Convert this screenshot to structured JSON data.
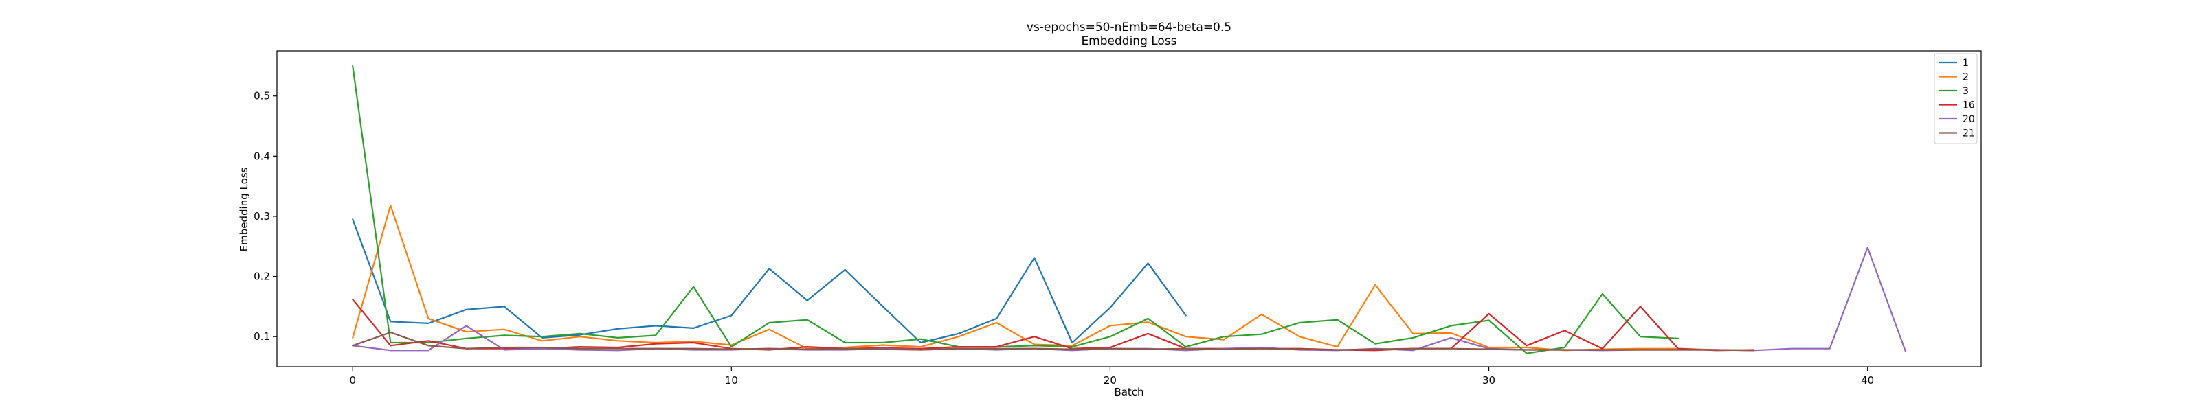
{
  "chart_data": {
    "type": "line",
    "title": "vs-epochs=50-nEmb=64-beta=0.5",
    "subtitle": "Embedding Loss",
    "xlabel": "Batch",
    "ylabel": "Embedding Loss",
    "xlim": [
      -2,
      43
    ],
    "ylim": [
      0.05,
      0.575
    ],
    "xticks": [
      0,
      10,
      20,
      30,
      40
    ],
    "yticks": [
      0.1,
      0.2,
      0.3,
      0.4,
      0.5
    ],
    "grid": false,
    "legend_position": "top-right",
    "series": [
      {
        "name": "1",
        "color": "#1f77b4",
        "x": [
          0,
          1,
          2,
          3,
          4,
          5,
          6,
          7,
          8,
          9,
          10,
          11,
          12,
          13,
          14,
          15,
          16,
          17,
          18,
          19,
          20,
          21,
          22
        ],
        "y": [
          0.295,
          0.125,
          0.122,
          0.145,
          0.15,
          0.098,
          0.103,
          0.113,
          0.118,
          0.114,
          0.135,
          0.213,
          0.16,
          0.211,
          0.15,
          0.09,
          0.105,
          0.13,
          0.231,
          0.09,
          0.148,
          0.222,
          0.135
        ]
      },
      {
        "name": "2",
        "color": "#ff7f0e",
        "x": [
          0,
          1,
          2,
          3,
          4,
          5,
          6,
          7,
          8,
          9,
          10,
          11,
          12,
          13,
          14,
          15,
          16,
          17,
          18,
          19,
          20,
          21,
          22,
          23,
          24,
          25,
          26,
          27,
          28,
          29,
          30,
          31,
          32,
          33,
          34,
          35,
          36
        ],
        "y": [
          0.098,
          0.318,
          0.13,
          0.108,
          0.112,
          0.093,
          0.1,
          0.093,
          0.09,
          0.092,
          0.086,
          0.112,
          0.08,
          0.082,
          0.086,
          0.083,
          0.1,
          0.123,
          0.087,
          0.085,
          0.118,
          0.124,
          0.1,
          0.095,
          0.137,
          0.1,
          0.083,
          0.186,
          0.105,
          0.106,
          0.082,
          0.082,
          0.077,
          0.079,
          0.08,
          0.08,
          0.078
        ]
      },
      {
        "name": "3",
        "color": "#2ca02c",
        "x": [
          0,
          1,
          2,
          3,
          4,
          5,
          6,
          7,
          8,
          9,
          10,
          11,
          12,
          13,
          14,
          15,
          16,
          17,
          18,
          19,
          20,
          21,
          22,
          23,
          24,
          25,
          26,
          27,
          28,
          29,
          30,
          31,
          32,
          33,
          34,
          35
        ],
        "y": [
          0.55,
          0.09,
          0.09,
          0.097,
          0.102,
          0.1,
          0.105,
          0.098,
          0.102,
          0.183,
          0.083,
          0.123,
          0.128,
          0.09,
          0.09,
          0.096,
          0.083,
          0.083,
          0.085,
          0.083,
          0.1,
          0.13,
          0.083,
          0.1,
          0.104,
          0.123,
          0.128,
          0.088,
          0.098,
          0.118,
          0.127,
          0.072,
          0.082,
          0.171,
          0.1,
          0.097
        ]
      },
      {
        "name": "16",
        "color": "#d62728",
        "x": [
          0,
          1,
          2,
          3,
          4,
          5,
          6,
          7,
          8,
          9,
          10,
          11,
          12,
          13,
          14,
          15,
          16,
          17,
          18,
          19,
          20,
          21,
          22,
          23,
          24,
          25,
          26,
          27,
          28,
          29,
          30,
          31,
          32,
          33,
          34,
          35,
          36,
          37
        ],
        "y": [
          0.162,
          0.085,
          0.093,
          0.08,
          0.08,
          0.08,
          0.083,
          0.082,
          0.088,
          0.09,
          0.08,
          0.078,
          0.083,
          0.08,
          0.081,
          0.08,
          0.083,
          0.083,
          0.1,
          0.08,
          0.082,
          0.105,
          0.08,
          0.08,
          0.08,
          0.08,
          0.078,
          0.077,
          0.08,
          0.08,
          0.138,
          0.085,
          0.11,
          0.08,
          0.15,
          0.08,
          0.077,
          0.078
        ]
      },
      {
        "name": "20",
        "color": "#9467bd",
        "x": [
          0,
          1,
          2,
          3,
          4,
          5,
          6,
          7,
          8,
          9,
          10,
          11,
          12,
          13,
          14,
          15,
          16,
          17,
          18,
          19,
          20,
          21,
          22,
          23,
          24,
          25,
          26,
          27,
          28,
          29,
          30,
          31,
          32,
          33,
          34,
          35,
          36,
          37,
          38,
          39,
          40,
          41
        ],
        "y": [
          0.085,
          0.077,
          0.077,
          0.118,
          0.078,
          0.08,
          0.078,
          0.077,
          0.08,
          0.078,
          0.078,
          0.08,
          0.078,
          0.078,
          0.08,
          0.078,
          0.08,
          0.078,
          0.08,
          0.077,
          0.08,
          0.08,
          0.077,
          0.08,
          0.082,
          0.078,
          0.077,
          0.08,
          0.077,
          0.098,
          0.08,
          0.078,
          0.078,
          0.077,
          0.078,
          0.078,
          0.078,
          0.077,
          0.08,
          0.08,
          0.248,
          0.076
        ]
      },
      {
        "name": "21",
        "color": "#8c564b",
        "x": [
          0,
          1,
          2,
          3,
          4,
          5,
          6,
          7,
          8,
          9,
          10,
          11,
          12,
          13,
          14,
          15,
          16,
          17,
          18,
          19,
          20,
          21,
          22,
          23,
          24,
          25,
          26,
          27,
          28,
          29,
          30,
          31,
          32,
          33,
          34,
          35,
          36,
          37
        ],
        "y": [
          0.085,
          0.107,
          0.085,
          0.08,
          0.082,
          0.082,
          0.08,
          0.08,
          0.08,
          0.08,
          0.079,
          0.08,
          0.079,
          0.08,
          0.079,
          0.078,
          0.08,
          0.08,
          0.08,
          0.079,
          0.08,
          0.079,
          0.08,
          0.079,
          0.08,
          0.079,
          0.078,
          0.079,
          0.08,
          0.08,
          0.079,
          0.078,
          0.078,
          0.078,
          0.078,
          0.078,
          0.078,
          0.077
        ]
      }
    ]
  }
}
